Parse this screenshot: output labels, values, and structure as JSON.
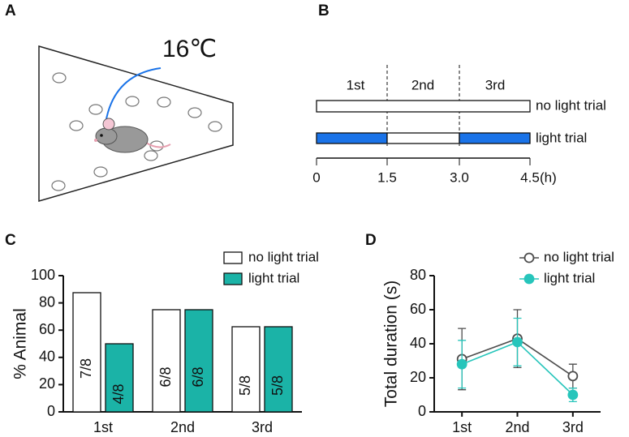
{
  "panel_labels": [
    "A",
    "B",
    "C",
    "D"
  ],
  "figure_a": {
    "temperature": "16℃"
  },
  "figure_b": {
    "segments": [
      "1st",
      "2nd",
      "3rd"
    ],
    "rows": [
      "no light trial",
      "light trial"
    ],
    "ticks": [
      "0",
      "1.5",
      "3.0",
      "4.5"
    ],
    "unit": "(h)"
  },
  "chart_data": [
    {
      "type": "bar",
      "ylabel": "% Animal",
      "categories": [
        "1st",
        "2nd",
        "3rd"
      ],
      "ylim": [
        0,
        100
      ],
      "yticks": [
        0,
        20,
        40,
        60,
        80,
        100
      ],
      "series": [
        {
          "name": "no light trial",
          "color": "#ffffff",
          "values": [
            87.5,
            75,
            62.5
          ],
          "value_labels": [
            "7/8",
            "6/8",
            "5/8"
          ]
        },
        {
          "name": "light trial",
          "color": "#1bb3a7",
          "values": [
            50,
            75,
            62.5
          ],
          "value_labels": [
            "4/8",
            "6/8",
            "5/8"
          ]
        }
      ]
    },
    {
      "type": "line",
      "ylabel": "Total duration (s)",
      "categories": [
        "1st",
        "2nd",
        "3rd"
      ],
      "ylim": [
        0,
        80
      ],
      "yticks": [
        0,
        20,
        40,
        60,
        80
      ],
      "series": [
        {
          "name": "no light trial",
          "color": "#4d4d4d",
          "filled": false,
          "values": [
            31,
            43,
            21
          ],
          "errors": [
            18,
            17,
            7
          ]
        },
        {
          "name": "light trial",
          "color": "#27c5bb",
          "filled": true,
          "values": [
            28,
            41,
            10
          ],
          "errors": [
            14,
            14,
            4
          ]
        }
      ]
    }
  ]
}
